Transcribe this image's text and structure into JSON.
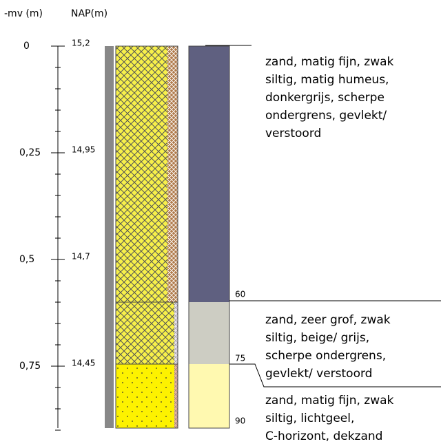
{
  "header": {
    "depth_label": "-mv (m)",
    "nap_label": "NAP(m)"
  },
  "depth_ticks": [
    "0",
    "0,25",
    "0,5",
    "0,75"
  ],
  "nap_ticks": [
    "15,2",
    "14,95",
    "14,7",
    "14,45"
  ],
  "layers": [
    {
      "bottom": "60",
      "description": [
        "zand, matig fijn, zwak",
        "siltig, matig humeus,",
        "donkergrijs, scherpe",
        "ondergrens, gevlekt/",
        "verstoord"
      ]
    },
    {
      "bottom": "75",
      "description": [
        "zand, zeer grof, zwak",
        "siltig, beige/ grijs,",
        "scherpe ondergrens,",
        "gevlekt/ verstoord"
      ]
    },
    {
      "bottom": "90",
      "description": [
        "zand, matig fijn, zwak",
        "siltig, lichtgeel,",
        "C-horizont, dekzand"
      ]
    }
  ]
}
